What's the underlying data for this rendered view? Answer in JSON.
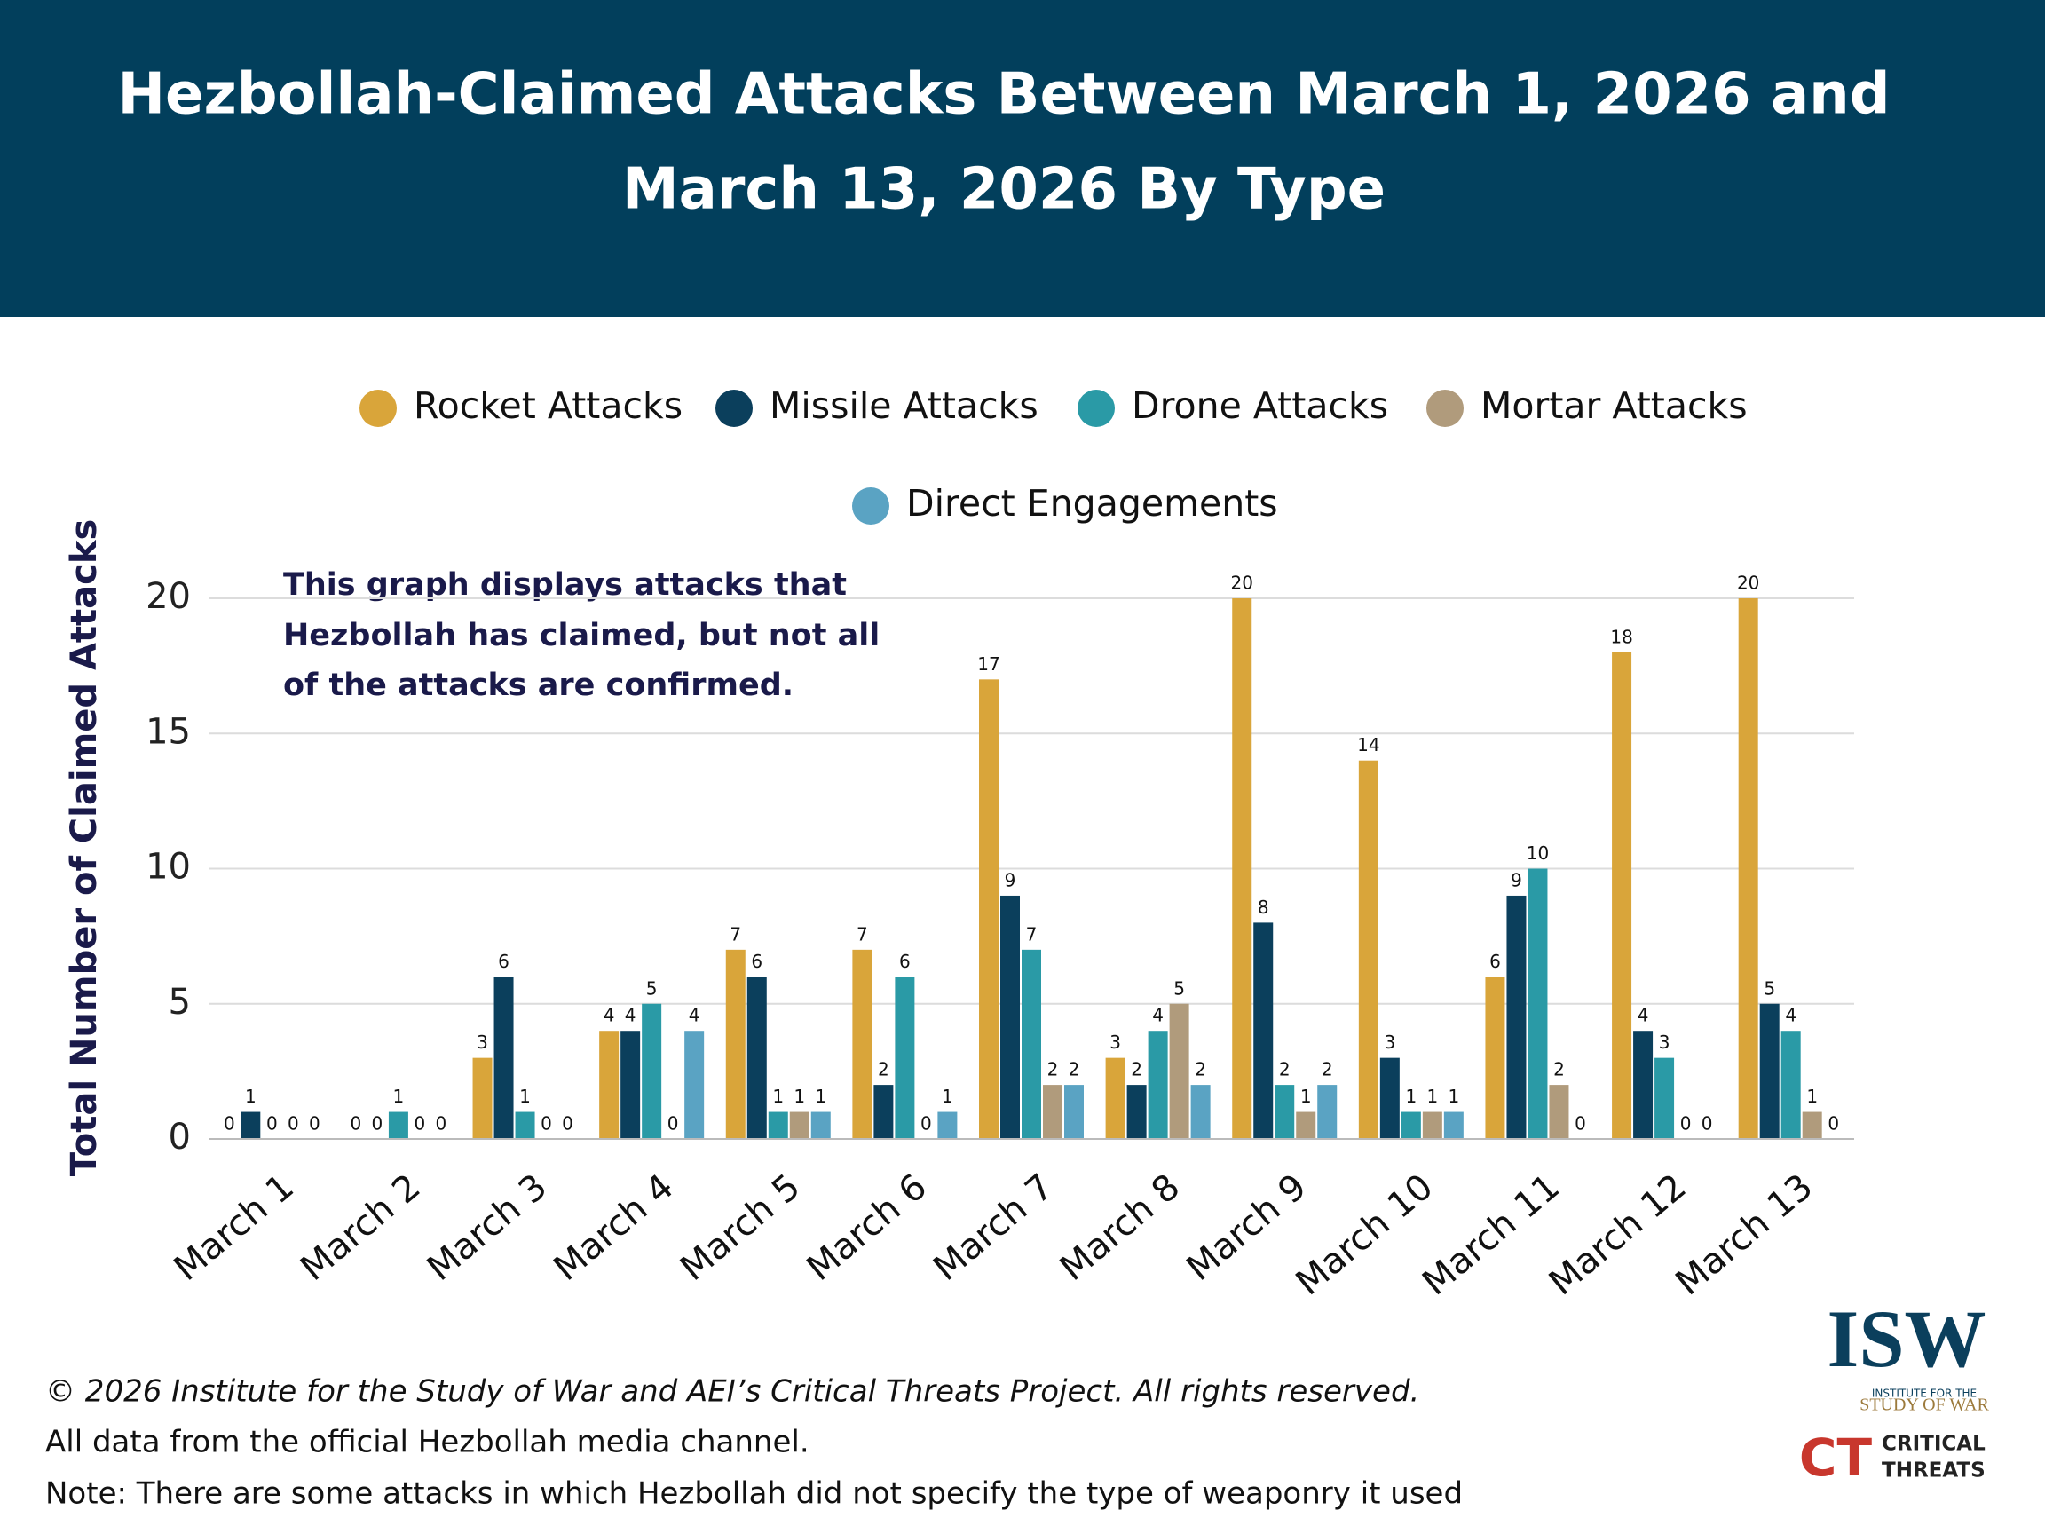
{
  "chart_data": {
    "type": "bar",
    "title": "Hezbollah-Claimed Attacks Between March 1, 2026 and",
    "title_line2": "March 13, 2026 By Type",
    "y_label": "Total Number of Claimed Attacks",
    "annotation": [
      "This graph displays attacks that",
      "Hezbollah has claimed, but not all",
      "of the attacks are confirmed."
    ],
    "categories": [
      "March 1",
      "March 2",
      "March 3",
      "March 4",
      "March 5",
      "March 6",
      "March 7",
      "March 8",
      "March 9",
      "March 10",
      "March 11",
      "March 12",
      "March 13"
    ],
    "series": [
      {
        "name": "Rocket Attacks",
        "color": "#d9a53a",
        "values": [
          0,
          0,
          3,
          4,
          7,
          7,
          17,
          3,
          20,
          14,
          6,
          18,
          20
        ]
      },
      {
        "name": "Missile Attacks",
        "color": "#0b3f5c",
        "values": [
          1,
          0,
          6,
          4,
          6,
          2,
          9,
          2,
          8,
          3,
          9,
          4,
          5
        ]
      },
      {
        "name": "Drone Attacks",
        "color": "#2a9aa6",
        "values": [
          0,
          1,
          1,
          5,
          1,
          6,
          7,
          4,
          2,
          1,
          10,
          3,
          4
        ]
      },
      {
        "name": "Mortar Attacks",
        "color": "#b09b7c",
        "values": [
          0,
          0,
          0,
          0,
          1,
          0,
          2,
          5,
          1,
          1,
          2,
          0,
          1
        ]
      },
      {
        "name": "Direct Engagements",
        "color": "#5aa3c3",
        "values": [
          0,
          0,
          0,
          4,
          1,
          1,
          2,
          2,
          2,
          1,
          0,
          0,
          0
        ]
      }
    ],
    "ylim": [
      0,
      20
    ],
    "yticks": [
      0,
      5,
      10,
      15,
      20
    ],
    "grid": true,
    "legend": "top"
  },
  "footer": [
    "© 2026 Institute for the Study of War and AEI’s Critical Threats Project. All rights reserved.",
    "All data from the official Hezbollah media channel.",
    "Note: There are some attacks in which Hezbollah did not specify the type of weaponry it used"
  ],
  "logos": {
    "isw": "ISW",
    "isw_line1": "INSTITUTE FOR THE",
    "isw_line2": "STUDY OF WAR",
    "ct_mark": "CT",
    "ct_line1": "CRITICAL",
    "ct_line2": "THREATS"
  }
}
